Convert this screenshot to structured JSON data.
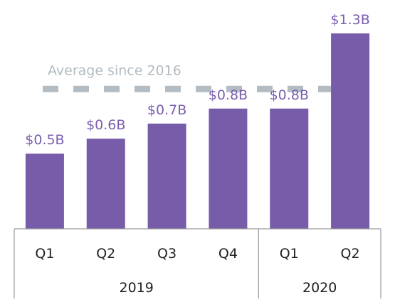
{
  "chart_data": {
    "type": "bar",
    "categories": [
      "Q1",
      "Q2",
      "Q3",
      "Q4",
      "Q1",
      "Q2"
    ],
    "groups": [
      {
        "label": "2019",
        "categories": [
          "Q1",
          "Q2",
          "Q3",
          "Q4"
        ]
      },
      {
        "label": "2020",
        "categories": [
          "Q1",
          "Q2"
        ]
      }
    ],
    "series": [
      {
        "values": [
          0.5,
          0.6,
          0.7,
          0.8,
          0.8,
          1.3
        ]
      }
    ],
    "value_labels": [
      "$0.5B",
      "$0.6B",
      "$0.7B",
      "$0.8B",
      "$0.8B",
      "$1.3B"
    ],
    "average": {
      "label": "Average since 2016",
      "value": 0.93
    },
    "ylim": [
      0,
      1.3
    ],
    "grid": false,
    "colors": {
      "bar": "#775ca9",
      "value_text": "#7a5fb0",
      "average_line": "#b3bcc2",
      "axis": "#9a9a9a"
    }
  }
}
